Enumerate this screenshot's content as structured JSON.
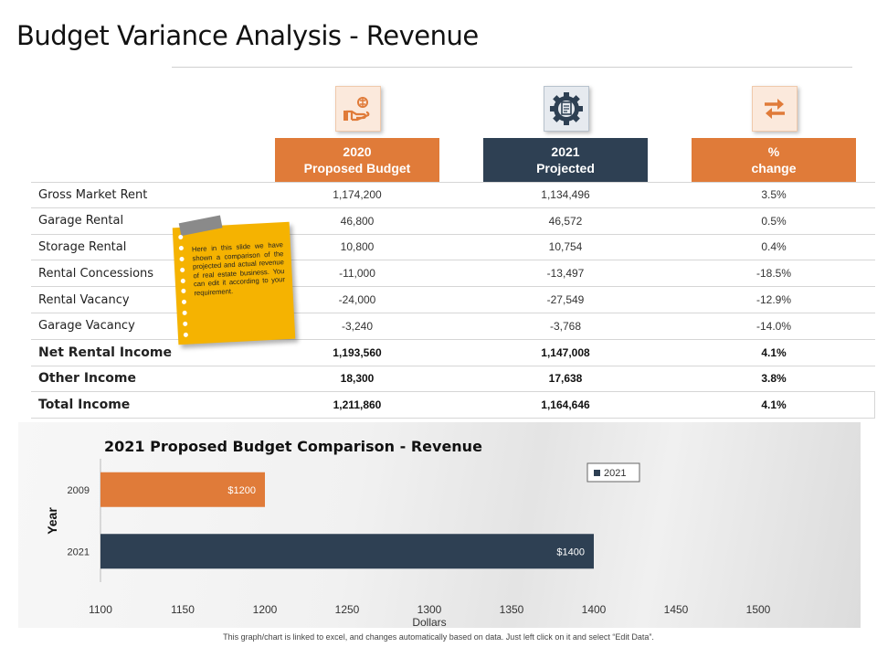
{
  "page": {
    "title": "Budget Variance Analysis - Revenue",
    "footnote": "This graph/chart is linked to excel, and changes automatically based on data. Just left click on it and select “Edit Data”."
  },
  "icons": [
    "hand-money-icon",
    "gear-document-icon",
    "exchange-arrows-icon"
  ],
  "columns": [
    {
      "line1": "2020",
      "line2": "Proposed Budget",
      "color": "#e07b39"
    },
    {
      "line1": "2021",
      "line2": "Projected",
      "color": "#2e4053"
    },
    {
      "line1": "%",
      "line2": "change",
      "color": "#e07b39"
    }
  ],
  "rows": [
    {
      "label": "Gross Market Rent",
      "budget": "1,174,200",
      "projected": "1,134,496",
      "change": "3.5%"
    },
    {
      "label": "Garage Rental",
      "budget": "46,800",
      "projected": "46,572",
      "change": "0.5%"
    },
    {
      "label": "Storage Rental",
      "budget": "10,800",
      "projected": "10,754",
      "change": "0.4%"
    },
    {
      "label": "Rental Concessions",
      "budget": "-11,000",
      "projected": "-13,497",
      "change": "-18.5%"
    },
    {
      "label": "Rental Vacancy",
      "budget": "-24,000",
      "projected": "-27,549",
      "change": "-12.9%"
    },
    {
      "label": "Garage Vacancy",
      "budget": "-3,240",
      "projected": "-3,768",
      "change": "-14.0%"
    },
    {
      "label": "Net Rental Income",
      "budget": "1,193,560",
      "projected": "1,147,008",
      "change": "4.1%"
    },
    {
      "label": "Other Income",
      "budget": "18,300",
      "projected": "17,638",
      "change": "3.8%"
    },
    {
      "label": "Total Income",
      "budget": "1,211,860",
      "projected": "1,164,646",
      "change": "4.1%"
    }
  ],
  "note": {
    "text": "Here in this slide we have shown a comparison of the projected and actual revenue of real estate business. You can edit it according to your requirement."
  },
  "chart_data": {
    "type": "bar",
    "orientation": "horizontal",
    "title": "2021 Proposed Budget Comparison - Revenue",
    "xlabel": "Dollars",
    "ylabel": "Year",
    "categories": [
      "2009",
      "2021"
    ],
    "values": [
      1200,
      1400
    ],
    "data_labels": [
      "$1200",
      "$1400"
    ],
    "bar_colors": [
      "#e07b39",
      "#2e4053"
    ],
    "xlim": [
      1100,
      1500
    ],
    "xticks": [
      1100,
      1150,
      1200,
      1250,
      1300,
      1350,
      1400,
      1450,
      1500
    ],
    "legend": {
      "entries": [
        "2021"
      ],
      "placement": "top-right",
      "color": "#2e4053"
    },
    "grid": false
  }
}
